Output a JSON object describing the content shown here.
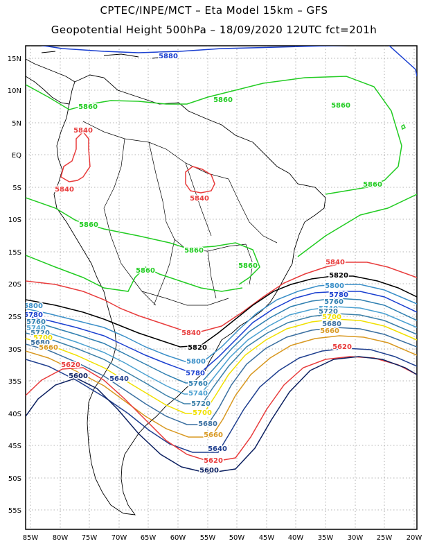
{
  "header": {
    "line1": "CPTEC/INPE/MCT  –  Eta Model 15km  –  GFS",
    "line2": "Geopotential Height 500hPa  –  18/09/2020 12UTC fct=201h"
  },
  "axes": {
    "lon_ticks": [
      "85W",
      "80W",
      "75W",
      "70W",
      "65W",
      "60W",
      "55W",
      "50W",
      "45W",
      "40W",
      "35W",
      "30W",
      "25W",
      "20W"
    ],
    "lat_ticks": [
      "15N",
      "10N",
      "5N",
      "EQ",
      "5S",
      "10S",
      "15S",
      "20S",
      "25S",
      "30S",
      "35S",
      "40S",
      "45S",
      "50S",
      "55S"
    ]
  },
  "colors": {
    "5880": "#1a3fd0",
    "5860": "#22cc22",
    "5840": "#e83c3c",
    "5820": "#000000",
    "5800": "#3a8fc8",
    "5780": "#1a3fd0",
    "5760": "#2f7fb0",
    "5740": "#4aa0d0",
    "5720": "#3a7fa8",
    "5700": "#f0e000",
    "5680": "#3a6fa0",
    "5660": "#d89820",
    "5640": "#1f3f8f",
    "5620": "#e83c3c",
    "5600": "#0c2060"
  },
  "contour_labels": [
    {
      "text": "5880"
    },
    {
      "text": "5860"
    },
    {
      "text": "5860"
    },
    {
      "text": "5860"
    },
    {
      "text": "5860"
    },
    {
      "text": "5860"
    },
    {
      "text": "5860"
    },
    {
      "text": "5860"
    },
    {
      "text": "5860"
    },
    {
      "text": "5840"
    },
    {
      "text": "5840"
    },
    {
      "text": "5840"
    },
    {
      "text": "5840"
    },
    {
      "text": "5840"
    },
    {
      "text": "5820"
    },
    {
      "text": "5820"
    },
    {
      "text": "5800"
    },
    {
      "text": "5800"
    },
    {
      "text": "5800"
    },
    {
      "text": "5780"
    },
    {
      "text": "5780"
    },
    {
      "text": "5780"
    },
    {
      "text": "5760"
    },
    {
      "text": "5760"
    },
    {
      "text": "5760"
    },
    {
      "text": "5740"
    },
    {
      "text": "5740"
    },
    {
      "text": "5740"
    },
    {
      "text": "5720"
    },
    {
      "text": "5720"
    },
    {
      "text": "5720"
    },
    {
      "text": "5700"
    },
    {
      "text": "5700"
    },
    {
      "text": "5700"
    },
    {
      "text": "5680"
    },
    {
      "text": "5680"
    },
    {
      "text": "5680"
    },
    {
      "text": "5660"
    },
    {
      "text": "5660"
    },
    {
      "text": "5660"
    },
    {
      "text": "5640"
    },
    {
      "text": "5640"
    },
    {
      "text": "5620"
    },
    {
      "text": "5620"
    },
    {
      "text": "5620"
    },
    {
      "text": "5600"
    },
    {
      "text": "5600"
    }
  ]
}
